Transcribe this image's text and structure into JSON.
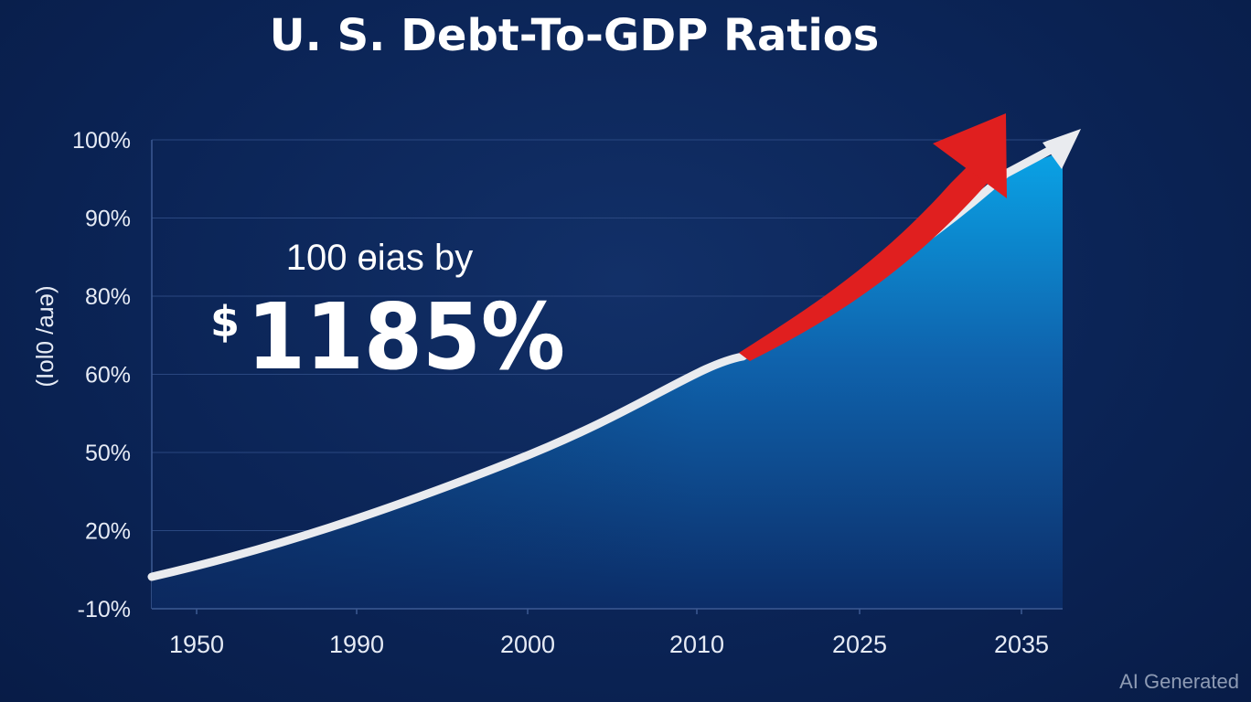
{
  "chart_data": {
    "type": "area",
    "title": "U. S. Debt-To-GDP Ratios",
    "ylabel": "(Iol0 /aɹə)",
    "x_ticks": [
      "1950",
      "1990",
      "2000",
      "2010",
      "2025",
      "2035"
    ],
    "y_ticks": [
      "100%",
      "90%",
      "80%",
      "60%",
      "50%",
      "20%",
      "-10%"
    ],
    "series": [
      {
        "values": [
          {
            "x": "1950",
            "y": "-10%"
          },
          {
            "x": "1990",
            "y": "20%"
          },
          {
            "x": "2000",
            "y": "50%"
          },
          {
            "x": "2010",
            "y": "60%"
          },
          {
            "x": "2025",
            "y": "80%"
          },
          {
            "x": "2035",
            "y": "100%"
          }
        ]
      }
    ],
    "grid": true,
    "annotation": {
      "line1": "100 ɵias by",
      "dollar": "$",
      "value": "1185%"
    },
    "colors": {
      "background": "#0b2456",
      "area_top": "#0aa3e6",
      "area_bottom": "#0c3878",
      "trend_line": "#e9ebef",
      "red_arrow": "#e01f1f"
    }
  },
  "watermark": "AI Generated"
}
